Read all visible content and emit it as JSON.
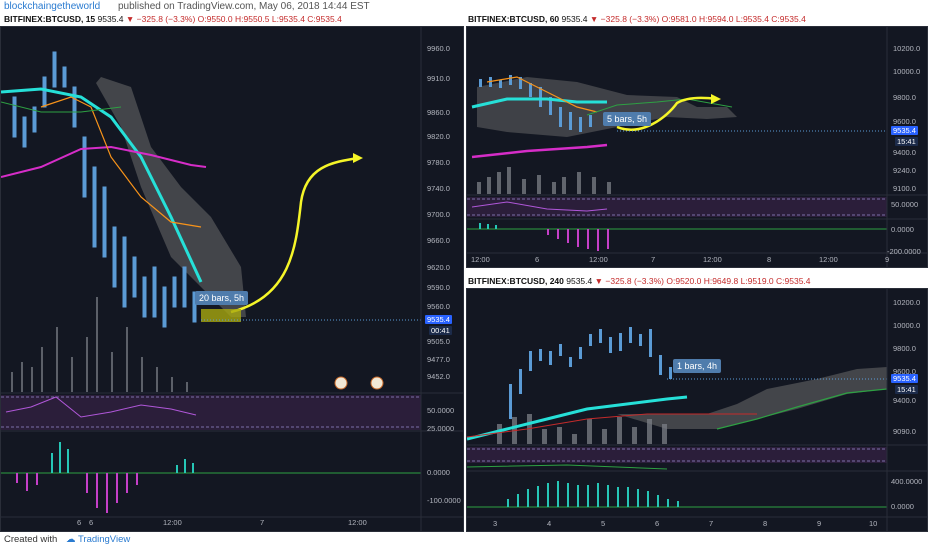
{
  "header": {
    "author": "blockchaingetheworld",
    "published_text": "published on TradingView.com, May 06, 2018 14:44 EST"
  },
  "panels": [
    {
      "symbol": "BITFINEX:BTCUSD, 15",
      "price": "9535.4",
      "change": "▼ −325.8 (−3.3%)",
      "ohlc": "O:9550.0 H:9550.5 L:9535.4 C:9535.4",
      "price_axis": [
        "9960.0",
        "9910.0",
        "9860.0",
        "9820.0",
        "9780.0",
        "9740.0",
        "9700.0",
        "9660.0",
        "9620.0",
        "9590.0",
        "9560.0",
        "9505.0",
        "9477.0",
        "9452.0"
      ],
      "last_price_tag": "9535.4",
      "countdown_tag": "00:41",
      "osc_axis": [
        "50.0000",
        "25.0000"
      ],
      "macd_axis": [
        "0.0000",
        "-100.0000"
      ],
      "time_axis": [
        "6",
        "6",
        "12:00",
        "7",
        "12:00"
      ],
      "annotation": "20 bars, 5h"
    },
    {
      "symbol": "BITFINEX:BTCUSD, 60",
      "price": "9535.4",
      "change": "▼ −325.8 (−3.3%)",
      "ohlc": "O:9581.0 H:9594.0 L:9535.4 C:9535.4",
      "price_axis": [
        "10200.0",
        "10000.0",
        "9800.0",
        "9600.0",
        "9400.0",
        "9240.0",
        "9100.0"
      ],
      "last_price_tag": "9535.4",
      "countdown_tag": "15:41",
      "osc_axis": [
        "50.0000"
      ],
      "macd_axis": [
        "0.0000",
        "-200.0000"
      ],
      "time_axis": [
        "12:00",
        "6",
        "12:00",
        "7",
        "12:00",
        "8",
        "12:00",
        "9"
      ],
      "annotation": "5 bars, 5h"
    },
    {
      "symbol": "BITFINEX:BTCUSD, 240",
      "price": "9535.4",
      "change": "▼ −325.8 (−3.3%)",
      "ohlc": "O:9520.0 H:9649.8 L:9519.0 C:9535.4",
      "price_axis": [
        "10200.0",
        "10000.0",
        "9800.0",
        "9600.0",
        "9400.0",
        "9090.0"
      ],
      "last_price_tag": "9535.4",
      "countdown_tag": "15:41",
      "osc_axis": [
        "400.0000",
        "0.0000"
      ],
      "time_axis": [
        "3",
        "4",
        "5",
        "6",
        "7",
        "8",
        "9",
        "10"
      ],
      "annotation": "1 bars, 4h"
    }
  ],
  "footer": {
    "created_with": "Created with",
    "brand": "TradingView"
  },
  "colors": {
    "bg": "#131722",
    "up": "#5b9bd5",
    "ema_cyan": "#26e0d8",
    "ma_magenta": "#d62dc8",
    "ma_orange": "#f7931a",
    "cloud": "#8a8a8a",
    "arrow": "#f5f528"
  }
}
